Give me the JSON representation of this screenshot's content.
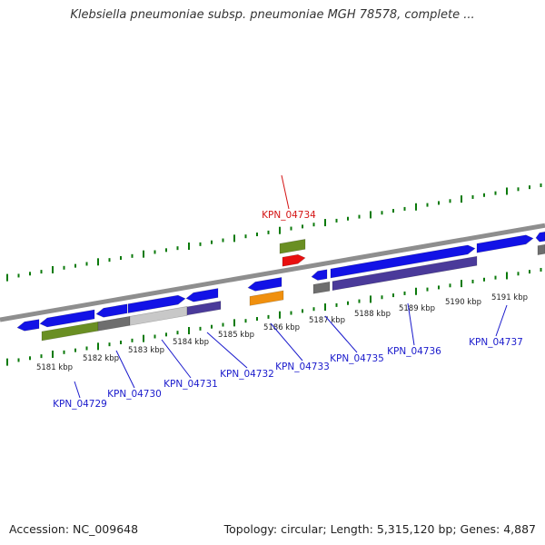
{
  "title": "Klebsiella pneumoniae subsp. pneumoniae MGH 78578, complete ...",
  "footer": {
    "accession": "Accession: NC_009648",
    "topology": "Topology: circular; Length: 5,315,120 bp; Genes: 4,887"
  },
  "colors": {
    "backbone": "#8e8e8e",
    "tick": "#0b7a0b",
    "cds": "#1212e6",
    "gene_green": "#6a8f23",
    "gray": "#6e6e6e",
    "light_gray": "#c8c8c8",
    "purple": "#4a3a9a",
    "orange": "#f0900e",
    "red": "#e81010",
    "label_blue": "#1a1acc",
    "label_red": "#d41414"
  },
  "scale_labels": [
    "5181 kbp",
    "5182 kbp",
    "5183 kbp",
    "5184 kbp",
    "5185 kbp",
    "5186 kbp",
    "5187 kbp",
    "5188 kbp",
    "5189 kbp",
    "5190 kbp",
    "5191 kbp"
  ],
  "gene_labels": [
    {
      "name": "KPN_04729",
      "highlight": false
    },
    {
      "name": "KPN_04730",
      "highlight": false
    },
    {
      "name": "KPN_04731",
      "highlight": false
    },
    {
      "name": "KPN_04732",
      "highlight": false
    },
    {
      "name": "KPN_04733",
      "highlight": false
    },
    {
      "name": "KPN_04734",
      "highlight": true
    },
    {
      "name": "KPN_04735",
      "highlight": false
    },
    {
      "name": "KPN_04736",
      "highlight": false
    },
    {
      "name": "KPN_04737",
      "highlight": false
    }
  ]
}
